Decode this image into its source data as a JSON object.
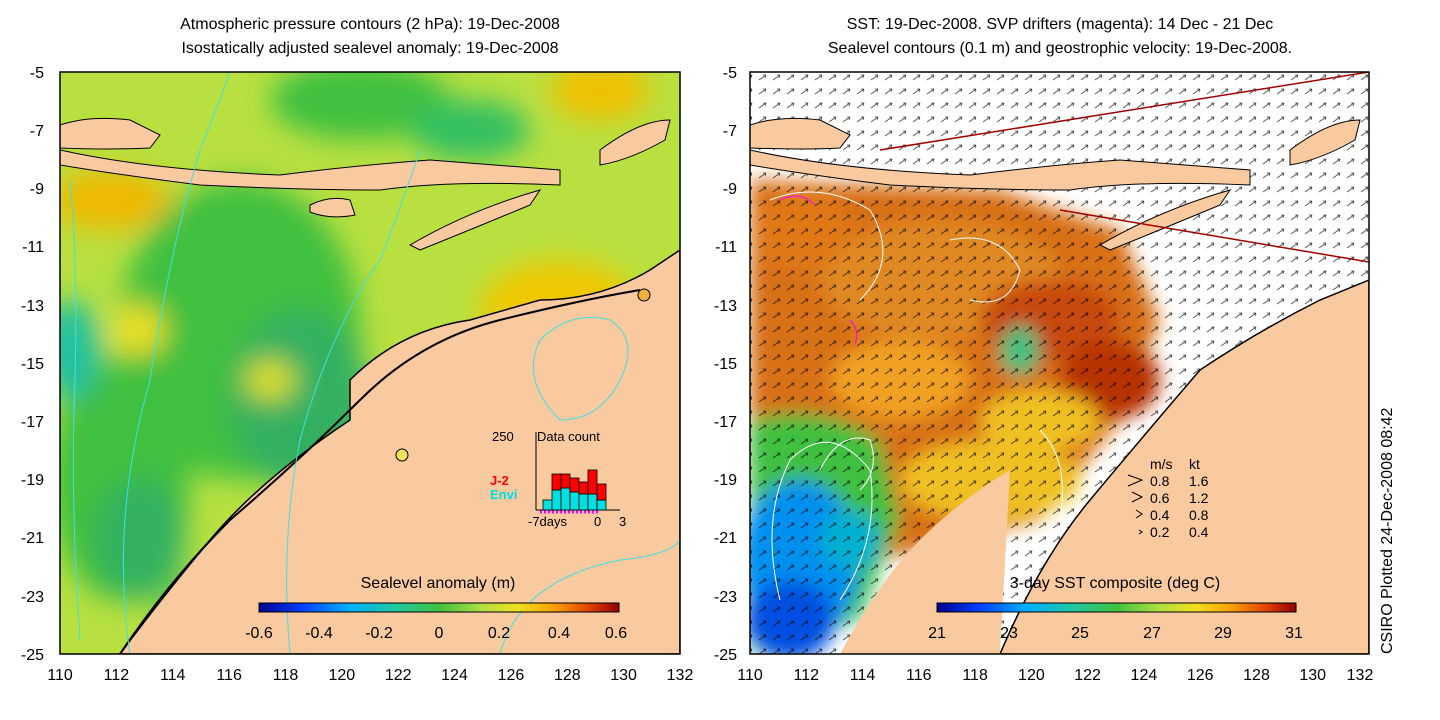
{
  "left_panel": {
    "title_line1": "Atmospheric pressure contours (2 hPa): 19-Dec-2008",
    "title_line2": "Isostatically adjusted sealevel anomaly: 19-Dec-2008",
    "x_ticks": [
      "110",
      "112",
      "114",
      "116",
      "118",
      "120",
      "122",
      "124",
      "126",
      "128",
      "130",
      "132"
    ],
    "y_ticks": [
      "-5",
      "-7",
      "-9",
      "-11",
      "-13",
      "-15",
      "-17",
      "-19",
      "-21",
      "-23",
      "-25"
    ],
    "colorbar": {
      "title": "Sealevel anomaly (m)",
      "ticks": [
        "-0.6",
        "-0.4",
        "-0.2",
        "0",
        "0.2",
        "0.4",
        "0.6"
      ]
    },
    "histogram": {
      "ymax_label": "250",
      "title": "Data count",
      "series": [
        "J-2",
        "Envi"
      ],
      "x_labels": [
        "-7days",
        "0",
        "3"
      ]
    }
  },
  "right_panel": {
    "title_line1": "SST: 19-Dec-2008. SVP drifters (magenta): 14 Dec - 21 Dec",
    "title_line2": "Sealevel contours (0.1 m) and geostrophic velocity: 19-Dec-2008.",
    "x_ticks": [
      "110",
      "112",
      "114",
      "116",
      "118",
      "120",
      "122",
      "124",
      "126",
      "128",
      "130",
      "132"
    ],
    "y_ticks": [
      "-5",
      "-7",
      "-9",
      "-11",
      "-13",
      "-15",
      "-17",
      "-19",
      "-21",
      "-23",
      "-25"
    ],
    "colorbar": {
      "title": "3-day SST composite (deg C)",
      "ticks": [
        "21",
        "23",
        "25",
        "27",
        "29",
        "31"
      ]
    },
    "velocity_legend": {
      "header_ms": "m/s",
      "header_kt": "kt",
      "rows": [
        {
          "ms": "0.8",
          "kt": "1.6"
        },
        {
          "ms": "0.6",
          "kt": "1.2"
        },
        {
          "ms": "0.4",
          "kt": "0.8"
        },
        {
          "ms": "0.2",
          "kt": "0.4"
        }
      ]
    }
  },
  "credit": "CSIRO Plotted 24-Dec-2008 08:42",
  "colors": {
    "land": "#f9c9a0",
    "coast": "#000000",
    "pressure_contour": "#40e0e0",
    "series_j2": "#ff0000",
    "series_envi": "#00e0e0",
    "drifter": "#ff00ff"
  }
}
